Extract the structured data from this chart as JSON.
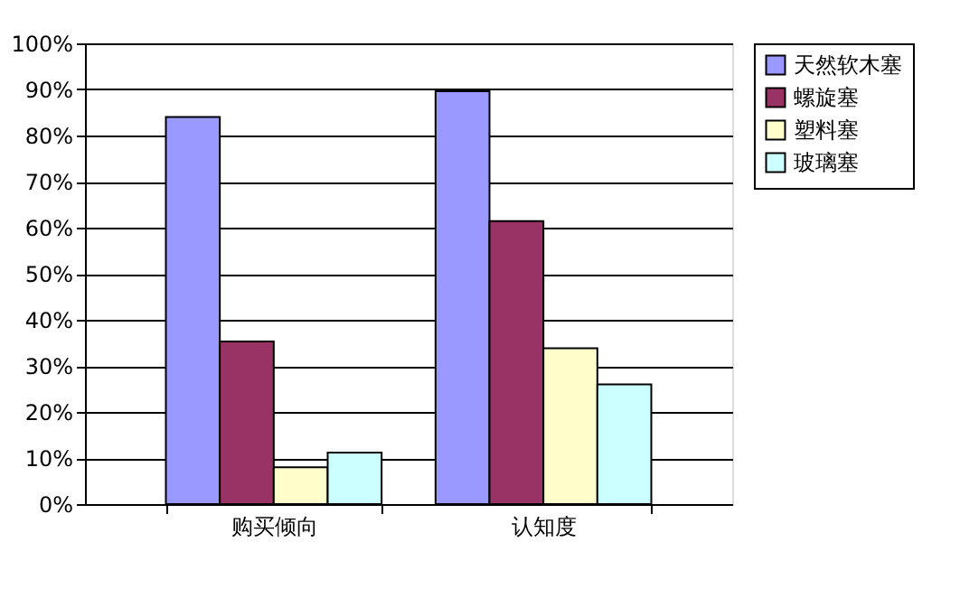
{
  "chart_data": {
    "type": "bar",
    "categories": [
      "购买倾向",
      "认知度"
    ],
    "series": [
      {
        "name": "天然软木塞",
        "color": "#9999ff",
        "values": [
          84.0,
          89.6
        ]
      },
      {
        "name": "螺旋塞",
        "color": "#993366",
        "values": [
          35.3,
          61.4
        ]
      },
      {
        "name": "塑料塞",
        "color": "#ffffcc",
        "values": [
          8.0,
          33.8
        ]
      },
      {
        "name": "玻璃塞",
        "color": "#ccffff",
        "values": [
          11.2,
          26.0
        ]
      }
    ],
    "ylim": [
      0,
      100
    ],
    "yticks": [
      {
        "value": 0,
        "label": "0%"
      },
      {
        "value": 10,
        "label": "10%"
      },
      {
        "value": 20,
        "label": "20%"
      },
      {
        "value": 30,
        "label": "30%"
      },
      {
        "value": 40,
        "label": "40%"
      },
      {
        "value": 50,
        "label": "50%"
      },
      {
        "value": 60,
        "label": "60%"
      },
      {
        "value": 70,
        "label": "70%"
      },
      {
        "value": 80,
        "label": "80%"
      },
      {
        "value": 90,
        "label": "90%"
      },
      {
        "value": 100,
        "label": "100%"
      }
    ],
    "grid": "y",
    "legend": "right"
  }
}
